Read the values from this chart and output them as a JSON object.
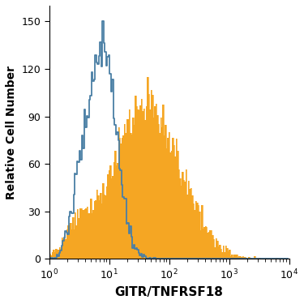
{
  "title": "",
  "xlabel": "GITR/TNFRSF18",
  "ylabel": "Relative Cell Number",
  "xlim_log": [
    0,
    4
  ],
  "ylim": [
    0,
    160
  ],
  "yticks": [
    0,
    30,
    60,
    90,
    120,
    150
  ],
  "isotype_color": "#4a7fa5",
  "antibody_color": "#f5a623",
  "antibody_fill_alpha": 1.0,
  "isotype_peak_height": 150,
  "antibody_peak_height": 115,
  "background_color": "#ffffff",
  "xlabel_fontsize": 11,
  "ylabel_fontsize": 10,
  "tick_fontsize": 9,
  "n_bins": 200,
  "iso_log_mean": 0.9,
  "iso_log_std": 0.22,
  "iso_n": 8000,
  "iso_shoulder_mean": 0.5,
  "iso_shoulder_std": 0.15,
  "iso_shoulder_n": 1500,
  "ab_log_mean": 1.62,
  "ab_log_std": 0.55,
  "ab_n": 12000,
  "ab_shoulder_mean": 0.5,
  "ab_shoulder_std": 0.2,
  "ab_shoulder_n": 800
}
